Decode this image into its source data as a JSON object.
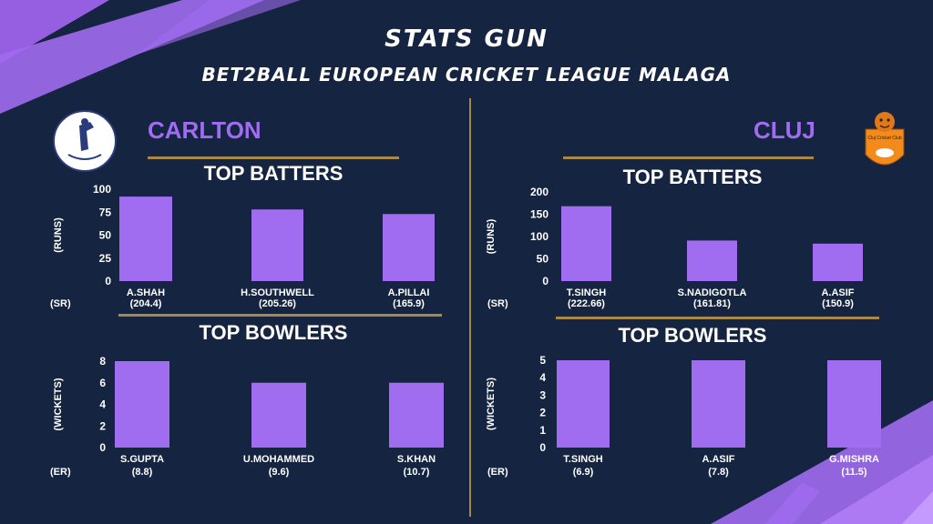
{
  "header": {
    "title": "STATS GUN",
    "subtitle": "BET2BALL EUROPEAN CRICKET LEAGUE MALAGA"
  },
  "colors": {
    "background": "#152440",
    "bar": "#a06cf0",
    "accent": "#a8884a",
    "team": "#a06cf0"
  },
  "teams": {
    "left": {
      "name": "CARLTON",
      "logo_icon": "carlton-crest-icon",
      "batters_title": "TOP BATTERS",
      "bowlers_title": "TOP BOWLERS"
    },
    "right": {
      "name": "CLUJ",
      "logo_icon": "cluj-tiger-crest-icon",
      "logo_text": "Cluj Cricket Club",
      "batters_title": "TOP BATTERS",
      "bowlers_title": "TOP BOWLERS"
    }
  },
  "chart_data": [
    {
      "id": "carlton-batters",
      "type": "bar",
      "categories": [
        "A.SHAH",
        "H.SOUTHWELL",
        "A.PILLAI"
      ],
      "sublabels": [
        "(204.4)",
        "(205.26)",
        "(165.9)"
      ],
      "values": [
        92,
        78,
        73
      ],
      "ylabel": "(RUNS)",
      "sublabel_axis": "(SR)",
      "ylim": [
        0,
        100
      ],
      "ticks": [
        0,
        25,
        50,
        75,
        100
      ]
    },
    {
      "id": "carlton-bowlers",
      "type": "bar",
      "categories": [
        "S.GUPTA",
        "U.MOHAMMED",
        "S.KHAN"
      ],
      "sublabels": [
        "(8.8)",
        "(9.6)",
        "(10.7)"
      ],
      "values": [
        8,
        6,
        6
      ],
      "ylabel": "(WICKETS)",
      "sublabel_axis": "(ER)",
      "ylim": [
        0,
        8
      ],
      "ticks": [
        0,
        2,
        4,
        6,
        8
      ]
    },
    {
      "id": "cluj-batters",
      "type": "bar",
      "categories": [
        "T.SINGH",
        "S.NADIGOTLA",
        "A.ASIF"
      ],
      "sublabels": [
        "(222.66)",
        "(161.81)",
        "(150.9)"
      ],
      "values": [
        168,
        91,
        84
      ],
      "ylabel": "(RUNS)",
      "sublabel_axis": "(SR)",
      "ylim": [
        0,
        200
      ],
      "ticks": [
        0,
        50,
        100,
        150,
        200
      ]
    },
    {
      "id": "cluj-bowlers",
      "type": "bar",
      "categories": [
        "T.SINGH",
        "A.ASIF",
        "G.MISHRA"
      ],
      "sublabels": [
        "(6.9)",
        "(7.8)",
        "(11.5)"
      ],
      "values": [
        5,
        5,
        5
      ],
      "ylabel": "(WICKETS)",
      "sublabel_axis": "(ER)",
      "ylim": [
        0,
        5
      ],
      "ticks": [
        0,
        1,
        2,
        3,
        4,
        5
      ]
    }
  ]
}
